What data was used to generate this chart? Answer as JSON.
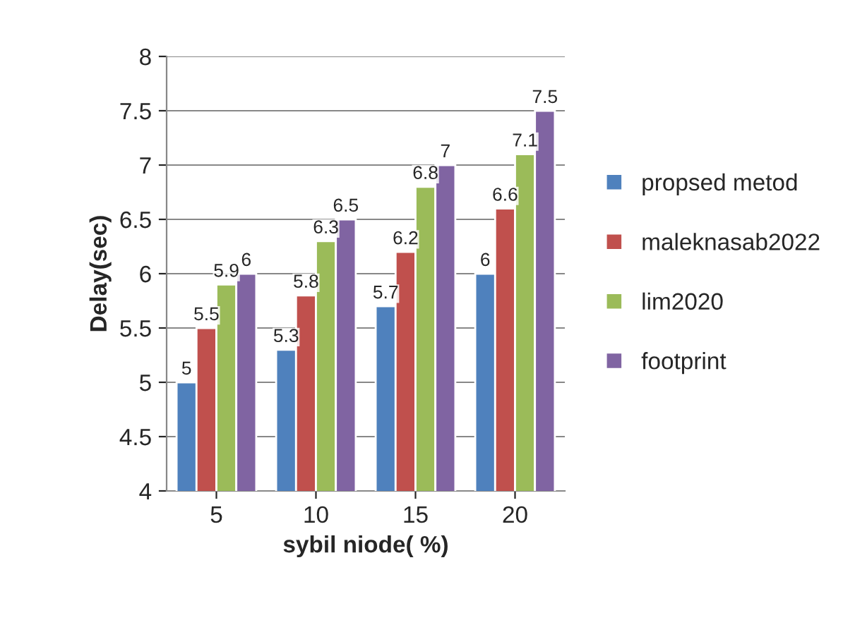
{
  "chart_data": {
    "type": "bar",
    "xlabel": "sybil niode( %)",
    "ylabel": "Delay(sec)",
    "categories": [
      "5",
      "10",
      "15",
      "20"
    ],
    "series": [
      {
        "name": "propsed metod",
        "color": "#4f81bd",
        "values": [
          5,
          5.3,
          5.7,
          6
        ]
      },
      {
        "name": "maleknasab2022",
        "color": "#c0504d",
        "values": [
          5.5,
          5.8,
          6.2,
          6.6
        ]
      },
      {
        "name": "lim2020",
        "color": "#9bbb59",
        "values": [
          5.9,
          6.3,
          6.8,
          7.1
        ]
      },
      {
        "name": "footprint",
        "color": "#8064a2",
        "values": [
          6,
          6.5,
          7,
          7.5
        ]
      }
    ],
    "ylim": [
      4,
      8
    ],
    "yticks": [
      4,
      4.5,
      5,
      5.5,
      6,
      6.5,
      7,
      7.5,
      8
    ],
    "grid": "y",
    "legend": "right",
    "data_labels": true
  }
}
